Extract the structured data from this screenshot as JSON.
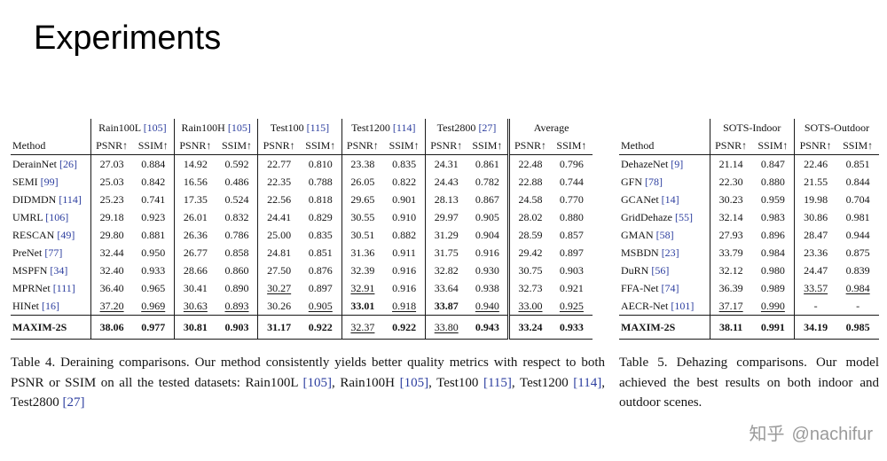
{
  "page": {
    "title": "Experiments"
  },
  "colors": {
    "citation": "#2c3e9f",
    "watermark": "#9a9a9a",
    "text": "#141414"
  },
  "watermark": {
    "logo": "知乎",
    "handle": "@nachifur"
  },
  "tables": [
    {
      "mount": "table4",
      "method_header": "Method",
      "metric_headers": [
        "PSNR↑",
        "SSIM↑"
      ],
      "double_bar_group": 5,
      "groups": [
        {
          "label": "Rain100L",
          "cite": "[105]"
        },
        {
          "label": "Rain100H",
          "cite": "[105]"
        },
        {
          "label": "Test100",
          "cite": "[115]"
        },
        {
          "label": "Test1200",
          "cite": "[114]"
        },
        {
          "label": "Test2800",
          "cite": "[27]"
        },
        {
          "label": "Average",
          "cite": ""
        }
      ],
      "rows": [
        {
          "method": "DerainNet",
          "cite": "[26]",
          "cells": [
            {
              "v": "27.03"
            },
            {
              "v": "0.884"
            },
            {
              "v": "14.92"
            },
            {
              "v": "0.592"
            },
            {
              "v": "22.77"
            },
            {
              "v": "0.810"
            },
            {
              "v": "23.38"
            },
            {
              "v": "0.835"
            },
            {
              "v": "24.31"
            },
            {
              "v": "0.861"
            },
            {
              "v": "22.48"
            },
            {
              "v": "0.796"
            }
          ]
        },
        {
          "method": "SEMI",
          "cite": "[99]",
          "cells": [
            {
              "v": "25.03"
            },
            {
              "v": "0.842"
            },
            {
              "v": "16.56"
            },
            {
              "v": "0.486"
            },
            {
              "v": "22.35"
            },
            {
              "v": "0.788"
            },
            {
              "v": "26.05"
            },
            {
              "v": "0.822"
            },
            {
              "v": "24.43"
            },
            {
              "v": "0.782"
            },
            {
              "v": "22.88"
            },
            {
              "v": "0.744"
            }
          ]
        },
        {
          "method": "DIDMDN",
          "cite": "[114]",
          "cells": [
            {
              "v": "25.23"
            },
            {
              "v": "0.741"
            },
            {
              "v": "17.35"
            },
            {
              "v": "0.524"
            },
            {
              "v": "22.56"
            },
            {
              "v": "0.818"
            },
            {
              "v": "29.65"
            },
            {
              "v": "0.901"
            },
            {
              "v": "28.13"
            },
            {
              "v": "0.867"
            },
            {
              "v": "24.58"
            },
            {
              "v": "0.770"
            }
          ]
        },
        {
          "method": "UMRL",
          "cite": "[106]",
          "cells": [
            {
              "v": "29.18"
            },
            {
              "v": "0.923"
            },
            {
              "v": "26.01"
            },
            {
              "v": "0.832"
            },
            {
              "v": "24.41"
            },
            {
              "v": "0.829"
            },
            {
              "v": "30.55"
            },
            {
              "v": "0.910"
            },
            {
              "v": "29.97"
            },
            {
              "v": "0.905"
            },
            {
              "v": "28.02"
            },
            {
              "v": "0.880"
            }
          ]
        },
        {
          "method": "RESCAN",
          "cite": "[49]",
          "cells": [
            {
              "v": "29.80"
            },
            {
              "v": "0.881"
            },
            {
              "v": "26.36"
            },
            {
              "v": "0.786"
            },
            {
              "v": "25.00"
            },
            {
              "v": "0.835"
            },
            {
              "v": "30.51"
            },
            {
              "v": "0.882"
            },
            {
              "v": "31.29"
            },
            {
              "v": "0.904"
            },
            {
              "v": "28.59"
            },
            {
              "v": "0.857"
            }
          ]
        },
        {
          "method": "PreNet",
          "cite": "[77]",
          "cells": [
            {
              "v": "32.44"
            },
            {
              "v": "0.950"
            },
            {
              "v": "26.77"
            },
            {
              "v": "0.858"
            },
            {
              "v": "24.81"
            },
            {
              "v": "0.851"
            },
            {
              "v": "31.36"
            },
            {
              "v": "0.911"
            },
            {
              "v": "31.75"
            },
            {
              "v": "0.916"
            },
            {
              "v": "29.42"
            },
            {
              "v": "0.897"
            }
          ]
        },
        {
          "method": "MSPFN",
          "cite": "[34]",
          "cells": [
            {
              "v": "32.40"
            },
            {
              "v": "0.933"
            },
            {
              "v": "28.66"
            },
            {
              "v": "0.860"
            },
            {
              "v": "27.50"
            },
            {
              "v": "0.876"
            },
            {
              "v": "32.39"
            },
            {
              "v": "0.916"
            },
            {
              "v": "32.82"
            },
            {
              "v": "0.930"
            },
            {
              "v": "30.75"
            },
            {
              "v": "0.903"
            }
          ]
        },
        {
          "method": "MPRNet",
          "cite": "[111]",
          "cells": [
            {
              "v": "36.40"
            },
            {
              "v": "0.965"
            },
            {
              "v": "30.41"
            },
            {
              "v": "0.890"
            },
            {
              "v": "30.27",
              "f": "u"
            },
            {
              "v": "0.897"
            },
            {
              "v": "32.91",
              "f": "u"
            },
            {
              "v": "0.916"
            },
            {
              "v": "33.64"
            },
            {
              "v": "0.938"
            },
            {
              "v": "32.73"
            },
            {
              "v": "0.921"
            }
          ]
        },
        {
          "method": "HINet",
          "cite": "[16]",
          "cells": [
            {
              "v": "37.20",
              "f": "u"
            },
            {
              "v": "0.969",
              "f": "u"
            },
            {
              "v": "30.63",
              "f": "u"
            },
            {
              "v": "0.893",
              "f": "u"
            },
            {
              "v": "30.26"
            },
            {
              "v": "0.905",
              "f": "u"
            },
            {
              "v": "33.01",
              "f": "b"
            },
            {
              "v": "0.918",
              "f": "u"
            },
            {
              "v": "33.87",
              "f": "b"
            },
            {
              "v": "0.940",
              "f": "u"
            },
            {
              "v": "33.00",
              "f": "u"
            },
            {
              "v": "0.925",
              "f": "u"
            }
          ]
        }
      ],
      "final_row": {
        "method": "MAXIM-2S",
        "cite": "",
        "cells": [
          {
            "v": "38.06",
            "f": "b"
          },
          {
            "v": "0.977",
            "f": "b"
          },
          {
            "v": "30.81",
            "f": "b"
          },
          {
            "v": "0.903",
            "f": "b"
          },
          {
            "v": "31.17",
            "f": "b"
          },
          {
            "v": "0.922",
            "f": "b"
          },
          {
            "v": "32.37",
            "f": "u"
          },
          {
            "v": "0.922",
            "f": "b"
          },
          {
            "v": "33.80",
            "f": "u"
          },
          {
            "v": "0.943",
            "f": "b"
          },
          {
            "v": "33.24",
            "f": "b"
          },
          {
            "v": "0.933",
            "f": "b"
          }
        ]
      }
    },
    {
      "mount": "table5",
      "method_header": "Method",
      "metric_headers": [
        "PSNR↑",
        "SSIM↑"
      ],
      "double_bar_group": -1,
      "groups": [
        {
          "label": "SOTS-Indoor",
          "cite": ""
        },
        {
          "label": "SOTS-Outdoor",
          "cite": ""
        }
      ],
      "rows": [
        {
          "method": "DehazeNet",
          "cite": "[9]",
          "cells": [
            {
              "v": "21.14"
            },
            {
              "v": "0.847"
            },
            {
              "v": "22.46"
            },
            {
              "v": "0.851"
            }
          ]
        },
        {
          "method": "GFN",
          "cite": "[78]",
          "cells": [
            {
              "v": "22.30"
            },
            {
              "v": "0.880"
            },
            {
              "v": "21.55"
            },
            {
              "v": "0.844"
            }
          ]
        },
        {
          "method": "GCANet",
          "cite": "[14]",
          "cells": [
            {
              "v": "30.23"
            },
            {
              "v": "0.959"
            },
            {
              "v": "19.98"
            },
            {
              "v": "0.704"
            }
          ]
        },
        {
          "method": "GridDehaze",
          "cite": "[55]",
          "cells": [
            {
              "v": "32.14"
            },
            {
              "v": "0.983"
            },
            {
              "v": "30.86"
            },
            {
              "v": "0.981"
            }
          ]
        },
        {
          "method": "GMAN",
          "cite": "[58]",
          "cells": [
            {
              "v": "27.93"
            },
            {
              "v": "0.896"
            },
            {
              "v": "28.47"
            },
            {
              "v": "0.944"
            }
          ]
        },
        {
          "method": "MSBDN",
          "cite": "[23]",
          "cells": [
            {
              "v": "33.79"
            },
            {
              "v": "0.984"
            },
            {
              "v": "23.36"
            },
            {
              "v": "0.875"
            }
          ]
        },
        {
          "method": "DuRN",
          "cite": "[56]",
          "cells": [
            {
              "v": "32.12"
            },
            {
              "v": "0.980"
            },
            {
              "v": "24.47"
            },
            {
              "v": "0.839"
            }
          ]
        },
        {
          "method": "FFA-Net",
          "cite": "[74]",
          "cells": [
            {
              "v": "36.39"
            },
            {
              "v": "0.989"
            },
            {
              "v": "33.57",
              "f": "u"
            },
            {
              "v": "0.984",
              "f": "u"
            }
          ]
        },
        {
          "method": "AECR-Net",
          "cite": "[101]",
          "cells": [
            {
              "v": "37.17",
              "f": "u"
            },
            {
              "v": "0.990",
              "f": "u"
            },
            {
              "v": "-"
            },
            {
              "v": "-"
            }
          ]
        }
      ],
      "final_row": {
        "method": "MAXIM-2S",
        "cite": "",
        "cells": [
          {
            "v": "38.11",
            "f": "b"
          },
          {
            "v": "0.991",
            "f": "b"
          },
          {
            "v": "34.19",
            "f": "b"
          },
          {
            "v": "0.985",
            "f": "b"
          }
        ]
      }
    }
  ],
  "captions": [
    {
      "mount": "caption4",
      "segments": [
        {
          "text": "Table 4.  Deraining comparisons.  Our method consistently yields better quality metrics with respect to both PSNR or SSIM on all the tested datasets: Rain100L "
        },
        {
          "text": "[105]",
          "cite": true
        },
        {
          "text": ", Rain100H "
        },
        {
          "text": "[105]",
          "cite": true
        },
        {
          "text": ", Test100 "
        },
        {
          "text": "[115]",
          "cite": true
        },
        {
          "text": ", Test1200 "
        },
        {
          "text": "[114]",
          "cite": true
        },
        {
          "text": ", Test2800 "
        },
        {
          "text": "[27]",
          "cite": true
        }
      ]
    },
    {
      "mount": "caption5",
      "segments": [
        {
          "text": "Table 5.  Dehazing comparisons.  Our model achieved the best results on both indoor and outdoor scenes."
        }
      ]
    }
  ]
}
